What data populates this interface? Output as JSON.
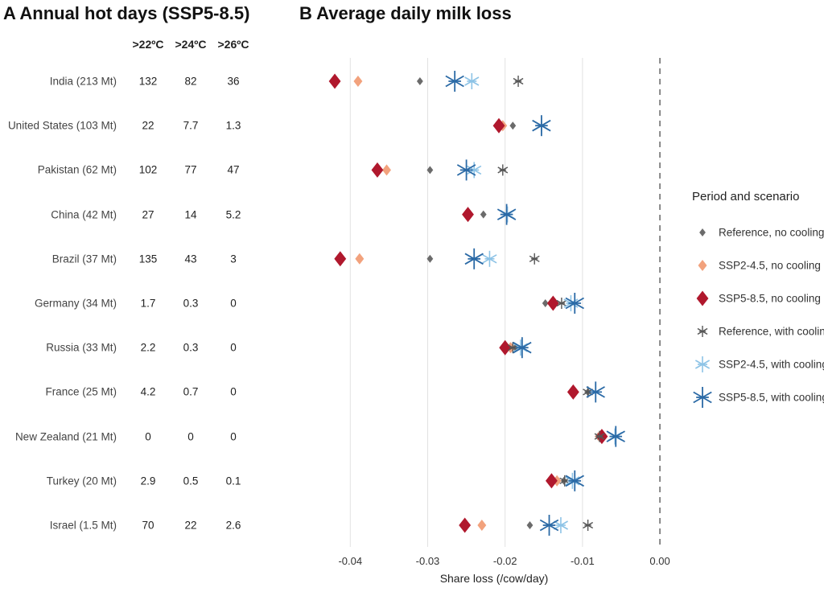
{
  "panel_a": {
    "title": "A  Annual hot days (SSP5-8.5)",
    "columns": [
      ">22ºC",
      ">24ºC",
      ">26ºC"
    ],
    "rows": [
      {
        "country": "India (213 Mt)",
        "values": [
          "132",
          "82",
          "36"
        ]
      },
      {
        "country": "United States (103 Mt)",
        "values": [
          "22",
          "7.7",
          "1.3"
        ]
      },
      {
        "country": "Pakistan (62 Mt)",
        "values": [
          "102",
          "77",
          "47"
        ]
      },
      {
        "country": "China (42 Mt)",
        "values": [
          "27",
          "14",
          "5.2"
        ]
      },
      {
        "country": "Brazil (37 Mt)",
        "values": [
          "135",
          "43",
          "3"
        ]
      },
      {
        "country": "Germany (34 Mt)",
        "values": [
          "1.7",
          "0.3",
          "0"
        ]
      },
      {
        "country": "Russia (33 Mt)",
        "values": [
          "2.2",
          "0.3",
          "0"
        ]
      },
      {
        "country": "France (25 Mt)",
        "values": [
          "4.2",
          "0.7",
          "0"
        ]
      },
      {
        "country": "New Zealand (21 Mt)",
        "values": [
          "0",
          "0",
          "0"
        ]
      },
      {
        "country": "Turkey (20 Mt)",
        "values": [
          "2.9",
          "0.5",
          "0.1"
        ]
      },
      {
        "country": "Israel (1.5 Mt)",
        "values": [
          "70",
          "22",
          "2.6"
        ]
      }
    ]
  },
  "chart_data": {
    "type": "scatter",
    "title": "B  Average daily milk loss",
    "xlabel": "Share loss (/cow/day)",
    "ylabel": "",
    "xlim": [
      -0.0445,
      0.0002
    ],
    "xticks": [
      -0.04,
      -0.03,
      -0.02,
      -0.01,
      0.0
    ],
    "xtick_labels": [
      "-0.04",
      "-0.03",
      "-0.02",
      "-0.01",
      "0.00"
    ],
    "grid": true,
    "reference_line": 0.0,
    "legend_title": "Period and scenario",
    "legend_position": "right",
    "categories": [
      "India (213 Mt)",
      "United States (103 Mt)",
      "Pakistan (62 Mt)",
      "China (42 Mt)",
      "Brazil (37 Mt)",
      "Germany (34 Mt)",
      "Russia (33 Mt)",
      "France (25 Mt)",
      "New Zealand (21 Mt)",
      "Turkey (20 Mt)",
      "Israel (1.5 Mt)"
    ],
    "series": [
      {
        "name": "Reference, no cooling",
        "marker": "diamond",
        "size": "small",
        "color": "#6b6b6b",
        "values": [
          -0.031,
          -0.019,
          -0.0297,
          -0.0228,
          -0.0297,
          -0.0148,
          -0.0187,
          -0.0093,
          -0.008,
          -0.0124,
          -0.0168
        ]
      },
      {
        "name": "SSP2-4.5, no cooling",
        "marker": "diamond",
        "size": "medium",
        "color": "#f2a27d",
        "values": [
          -0.039,
          -0.0203,
          -0.0353,
          -0.025,
          -0.0388,
          -0.014,
          -0.0193,
          -0.011,
          -0.0078,
          -0.0133,
          -0.023
        ]
      },
      {
        "name": "SSP5-8.5, no cooling",
        "marker": "diamond",
        "size": "large",
        "color": "#b0182d",
        "values": [
          -0.042,
          -0.0208,
          -0.0365,
          -0.0248,
          -0.0413,
          -0.0138,
          -0.02,
          -0.0112,
          -0.0075,
          -0.014,
          -0.0252
        ]
      },
      {
        "name": "Reference, with cooling",
        "marker": "asterisk",
        "size": "small",
        "color": "#555555",
        "values": [
          -0.0183,
          -0.0153,
          -0.0203,
          -0.0198,
          -0.0162,
          -0.0127,
          -0.019,
          -0.0093,
          -0.0078,
          -0.0123,
          -0.0093
        ]
      },
      {
        "name": "SSP2-4.5, with cooling",
        "marker": "asterisk",
        "size": "medium",
        "color": "#8dc3e6",
        "values": [
          -0.0243,
          -0.0153,
          -0.024,
          -0.0197,
          -0.022,
          -0.0115,
          -0.018,
          -0.0083,
          -0.0058,
          -0.0113,
          -0.0128
        ]
      },
      {
        "name": "SSP5-8.5, with cooling",
        "marker": "asterisk",
        "size": "large",
        "color": "#2b6aa6",
        "values": [
          -0.0265,
          -0.0153,
          -0.025,
          -0.0198,
          -0.024,
          -0.011,
          -0.0178,
          -0.0083,
          -0.0057,
          -0.011,
          -0.0143
        ]
      }
    ]
  }
}
